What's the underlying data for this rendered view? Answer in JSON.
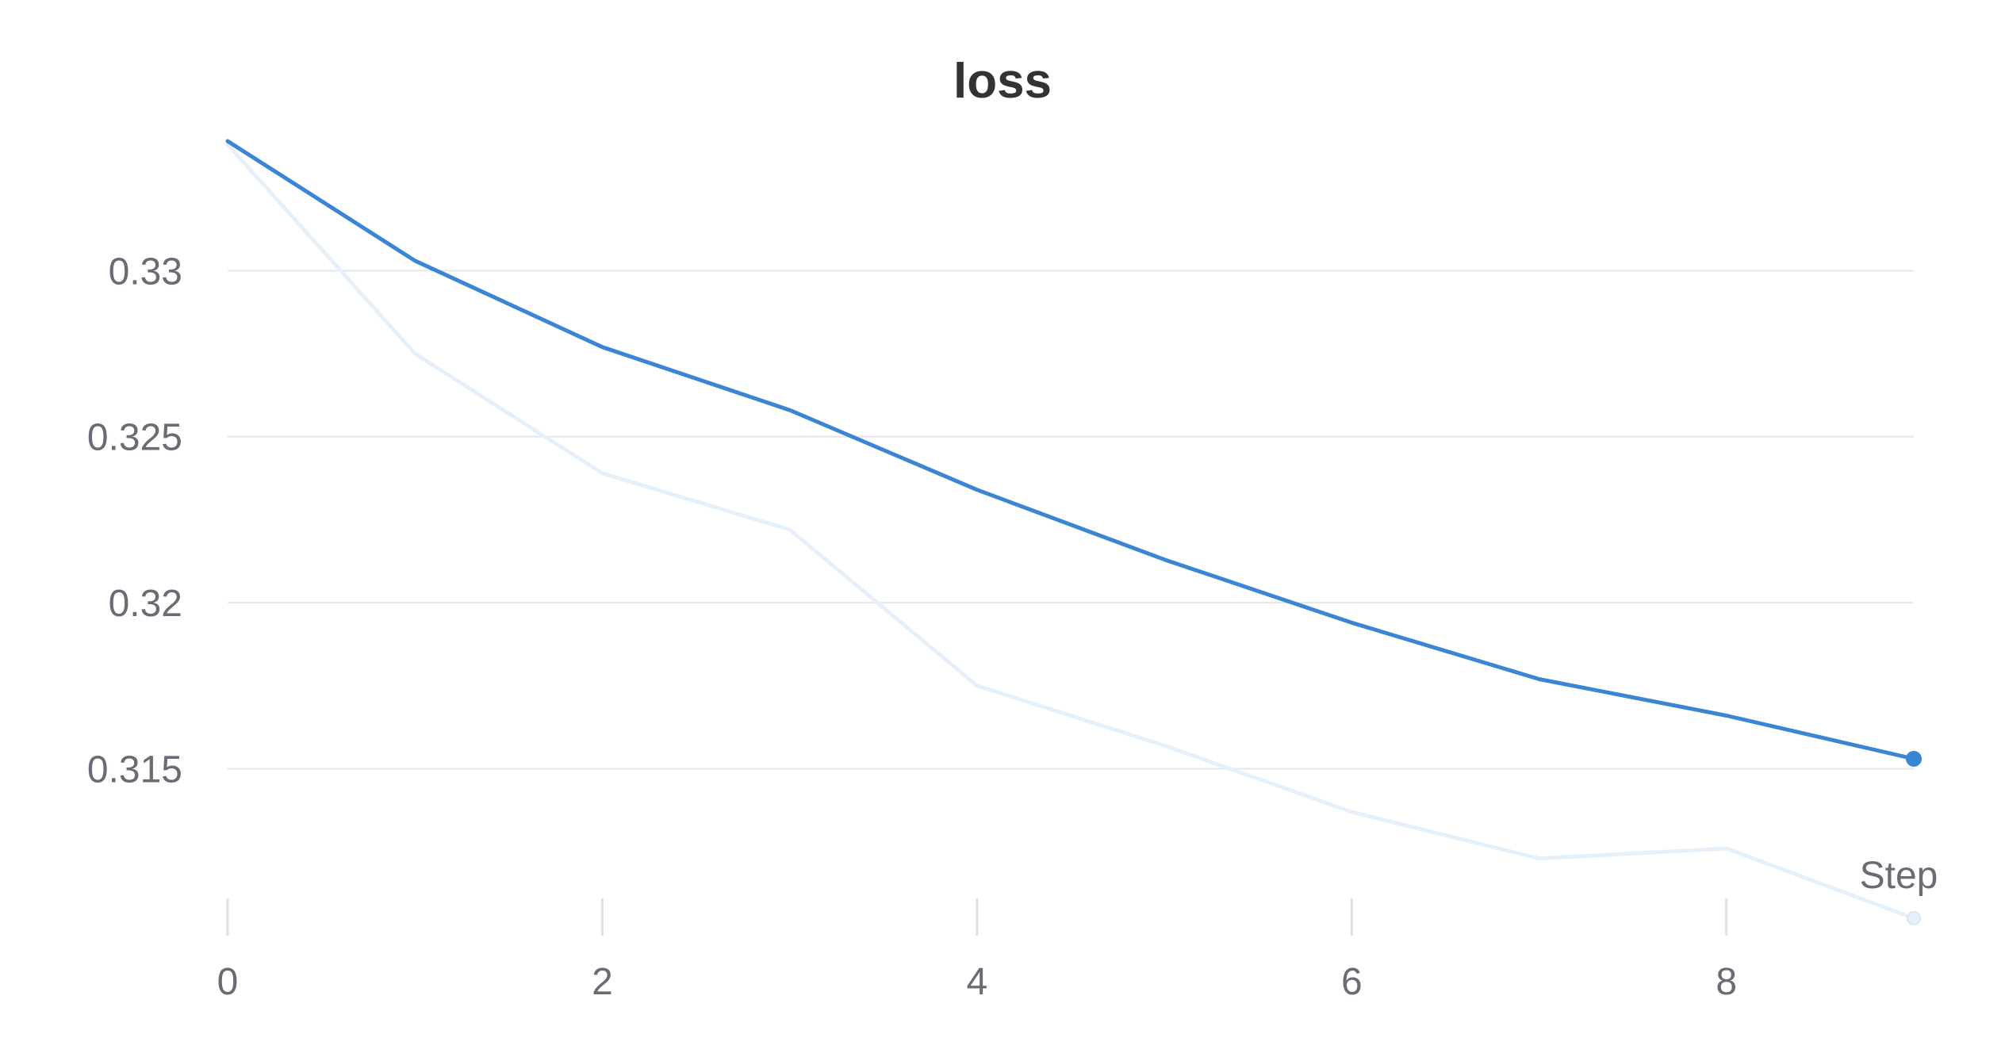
{
  "chart_data": {
    "type": "line",
    "title": "loss",
    "xlabel": "Step",
    "ylabel": "",
    "xlim": [
      0,
      9
    ],
    "ylim": [
      0.3105,
      0.3339
    ],
    "x_ticks": [
      0,
      2,
      4,
      6,
      8
    ],
    "x_tick_labels": [
      "0",
      "2",
      "4",
      "6",
      "8"
    ],
    "y_ticks": [
      0.315,
      0.32,
      0.325,
      0.33
    ],
    "y_tick_labels": [
      "0.315",
      "0.32",
      "0.325",
      "0.33"
    ],
    "grid": "horizontal",
    "legend": "none",
    "series": [
      {
        "role": "raw",
        "color": "#e6f0fa",
        "x": [
          0,
          1,
          2,
          3,
          4,
          5,
          6,
          7,
          8,
          9
        ],
        "values": [
          0.3338,
          0.3275,
          0.3239,
          0.3222,
          0.3175,
          0.3157,
          0.3137,
          0.3123,
          0.3126,
          0.3105
        ]
      },
      {
        "role": "smoothed",
        "color": "#3b86d4",
        "x": [
          0,
          1,
          2,
          3,
          4,
          5,
          6,
          7,
          8,
          9
        ],
        "values": [
          0.3339,
          0.3303,
          0.3277,
          0.3258,
          0.3234,
          0.3213,
          0.3194,
          0.3177,
          0.3166,
          0.3153
        ]
      }
    ]
  }
}
